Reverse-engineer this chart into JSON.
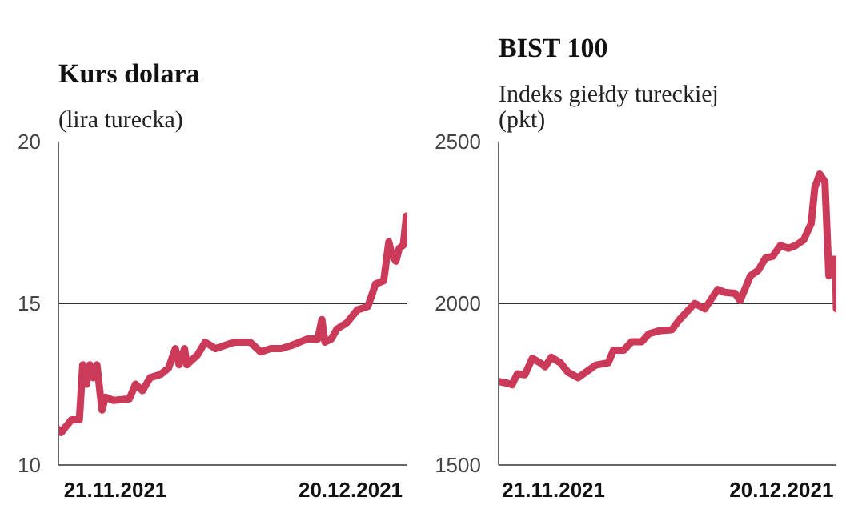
{
  "chart_data": [
    {
      "type": "line",
      "title": "Kurs dolara",
      "subtitle": "(lira turecka)",
      "ylim": [
        10,
        20
      ],
      "yticks": [
        10,
        15,
        20
      ],
      "xlim": [
        "2021-11-14",
        "2021-12-27"
      ],
      "xticks": [
        {
          "value": "2021-11-21",
          "label": "21.11.2021"
        },
        {
          "value": "2021-12-20",
          "label": "20.12.2021"
        }
      ],
      "grid": "y",
      "line_style": "solid",
      "series": [
        {
          "color": "#cc3a5a",
          "x": [
            "2021-11-14T00:00",
            "2021-11-14T08:00",
            "2021-11-14T23:00",
            "2021-11-15T15:00",
            "2021-11-16T14:00",
            "2021-11-17T00:00",
            "2021-11-17T11:00",
            "2021-11-17T21:00",
            "2021-11-18T07:00",
            "2021-11-18T18:00",
            "2021-11-19T09:00",
            "2021-11-19T19:00",
            "2021-11-20T19:00",
            "2021-11-22T18:00",
            "2021-11-23T12:00",
            "2021-11-24T09:00",
            "2021-11-25T07:00",
            "2021-11-26T14:00",
            "2021-11-27T14:00",
            "2021-11-28T10:00",
            "2021-11-28T21:00",
            "2021-11-29T13:00",
            "2021-11-29T20:00",
            "2021-12-01T03:00",
            "2021-12-02T02:00",
            "2021-12-03T09:00",
            "2021-12-05T16:00",
            "2021-12-07T15:00",
            "2021-12-08T22:00",
            "2021-12-10T04:00",
            "2021-12-11T11:00",
            "2021-12-12T18:00",
            "2021-12-14T17:00",
            "2021-12-15T23:00",
            "2021-12-16T11:00",
            "2021-12-16T20:00",
            "2021-12-17T15:00",
            "2021-12-18T07:00",
            "2021-12-19T13:00",
            "2021-12-20T20:00",
            "2021-12-22T03:00",
            "2021-12-23T02:00",
            "2021-12-24T02:00",
            "2021-12-24T17:00",
            "2021-12-25T02:00",
            "2021-12-25T14:00",
            "2021-12-26T00:00",
            "2021-12-26T12:00",
            "2021-12-26T21:00"
          ],
          "values": [
            11.1,
            11.0,
            11.2,
            11.4,
            11.4,
            13.1,
            12.5,
            13.1,
            12.7,
            13.1,
            11.7,
            12.1,
            12.0,
            12.05,
            12.5,
            12.3,
            12.7,
            12.8,
            13.0,
            13.6,
            13.1,
            13.6,
            13.1,
            13.4,
            13.8,
            13.6,
            13.8,
            13.8,
            13.5,
            13.6,
            13.6,
            13.7,
            13.9,
            13.9,
            14.5,
            13.8,
            13.9,
            14.2,
            14.4,
            14.8,
            14.9,
            15.6,
            15.7,
            16.9,
            16.5,
            16.3,
            16.7,
            16.8,
            17.7
          ]
        }
      ]
    },
    {
      "type": "line",
      "title": "BIST 100",
      "subtitle": "Indeks giełdy tureckiej (pkt)",
      "ylim": [
        1500,
        2500
      ],
      "yticks": [
        1500,
        2000,
        2500
      ],
      "xlim": [
        "2021-11-14",
        "2021-12-27"
      ],
      "xticks": [
        {
          "value": "2021-11-21",
          "label": "21.11.2021"
        },
        {
          "value": "2021-12-20",
          "label": "20.12.2021"
        }
      ],
      "grid": "y",
      "line_style": "solid",
      "series": [
        {
          "color": "#cc3a5a",
          "x": [
            "2021-11-14T00:00",
            "2021-11-15T02:00",
            "2021-11-15T17:00",
            "2021-11-16T09:00",
            "2021-11-17T08:00",
            "2021-11-18T07:00",
            "2021-11-19T07:00",
            "2021-11-19T22:00",
            "2021-11-20T17:00",
            "2021-11-21T21:00",
            "2021-11-22T20:00",
            "2021-11-24T03:00",
            "2021-11-25T02:00",
            "2021-11-26T09:00",
            "2021-11-27T23:00",
            "2021-11-28T15:00",
            "2021-11-29T22:00",
            "2021-11-30T22:00",
            "2021-12-02T05:00",
            "2021-12-03T03:00",
            "2021-12-04T10:00",
            "2021-12-06T01:00",
            "2021-12-07T00:00",
            "2021-12-08T23:00",
            "2021-12-10T06:00",
            "2021-12-11T21:00",
            "2021-12-12T19:00",
            "2021-12-14T02:00",
            "2021-12-14T18:00",
            "2021-12-16T01:00",
            "2021-12-17T01:00",
            "2021-12-17T23:00",
            "2021-12-18T21:00",
            "2021-12-19T21:00",
            "2021-12-20T21:00",
            "2021-12-21T20:00",
            "2021-12-22T20:00",
            "2021-12-23T19:00",
            "2021-12-24T06:00",
            "2021-12-24T21:00",
            "2021-12-25T13:00",
            "2021-12-26T01:00",
            "2021-12-26T12:00",
            "2021-12-26T21:00",
            "2021-12-27T00:00"
          ],
          "values": [
            1758,
            1753,
            1748,
            1782,
            1779,
            1830,
            1816,
            1804,
            1833,
            1816,
            1787,
            1770,
            1787,
            1809,
            1816,
            1855,
            1855,
            1881,
            1881,
            1906,
            1915,
            1918,
            1949,
            2000,
            1983,
            2043,
            2034,
            2031,
            2009,
            2085,
            2102,
            2140,
            2145,
            2179,
            2170,
            2179,
            2196,
            2247,
            2358,
            2400,
            2375,
            2085,
            2136,
            2136,
            1983
          ]
        }
      ]
    }
  ]
}
